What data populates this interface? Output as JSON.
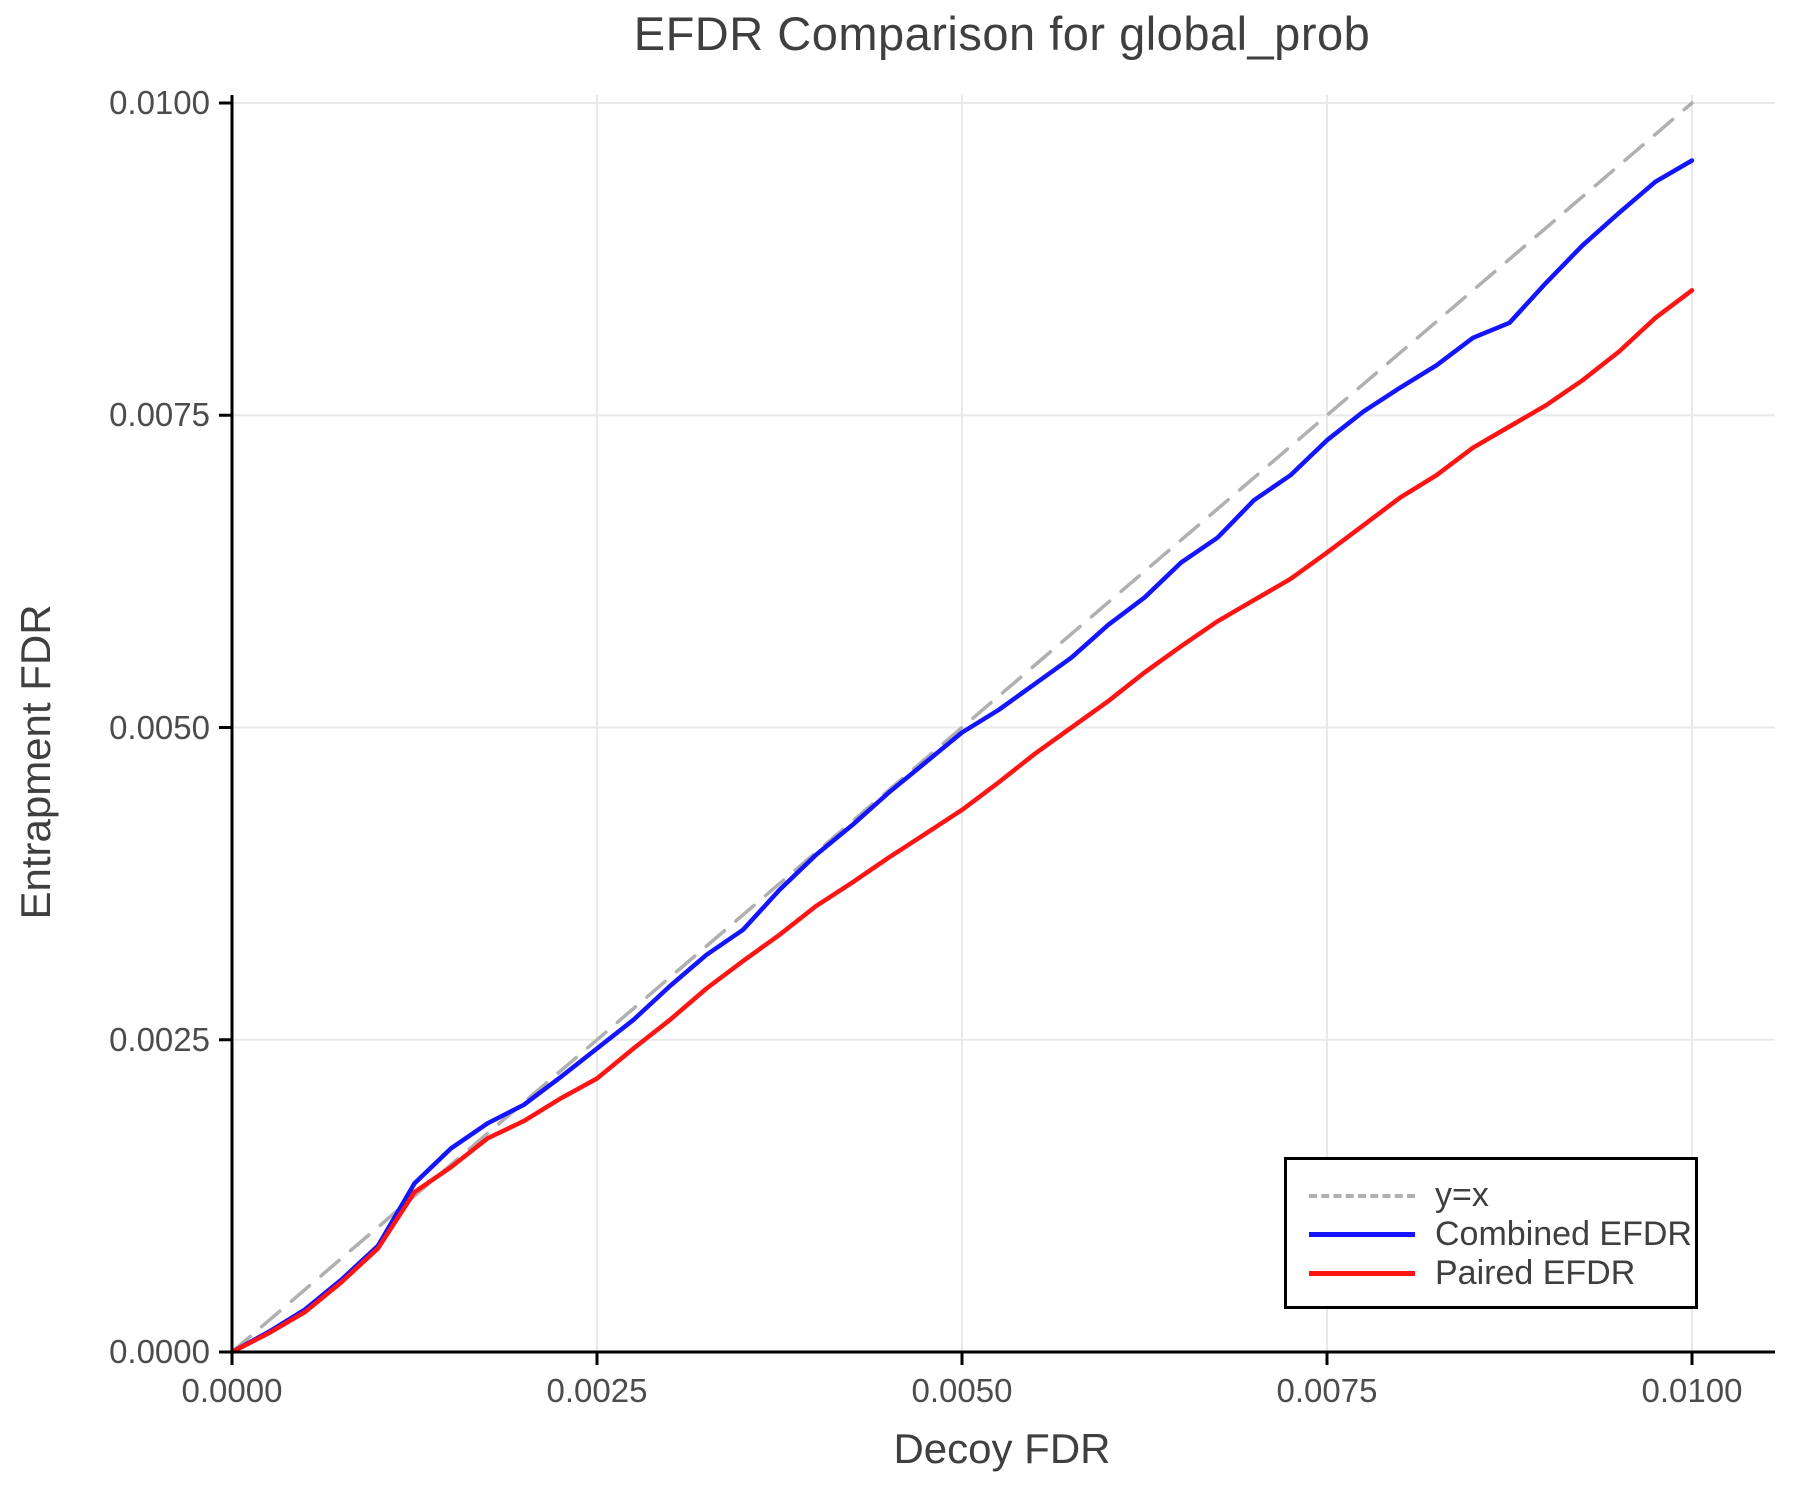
{
  "title": "EFDR Comparison for global_prob",
  "axes": {
    "xlabel": "Decoy FDR",
    "ylabel": "Entrapment FDR",
    "x_tick_labels": [
      "0.0000",
      "0.0025",
      "0.0050",
      "0.0075",
      "0.0100"
    ],
    "y_tick_labels": [
      "0.0000",
      "0.0025",
      "0.0050",
      "0.0075",
      "0.0100"
    ],
    "x_tick_values": [
      0,
      0.0025,
      0.005,
      0.0075,
      0.01
    ],
    "y_tick_values": [
      0,
      0.0025,
      0.005,
      0.0075,
      0.01
    ]
  },
  "legend": {
    "items": [
      {
        "label": "y=x",
        "color": "#b0b0b0",
        "dashed": true
      },
      {
        "label": "Combined EFDR",
        "color": "#1414ff",
        "dashed": false
      },
      {
        "label": "Paired EFDR",
        "color": "#ff1414",
        "dashed": false
      }
    ]
  },
  "colors": {
    "identity": "#b0b0b0",
    "combined": "#1414ff",
    "paired": "#ff1414",
    "grid": "#e9e9e9",
    "spine": "#000000",
    "text": "#3f3f3f",
    "tick_text": "#4c4c4c"
  },
  "chart_data": {
    "type": "line",
    "title": "EFDR Comparison for global_prob",
    "xlabel": "Decoy FDR",
    "ylabel": "Entrapment FDR",
    "xlim": [
      0,
      0.0106
    ],
    "ylim": [
      0,
      0.0101
    ],
    "grid": true,
    "legend_position": "lower right",
    "x": [
      0,
      0.00025,
      0.0005,
      0.00075,
      0.001,
      0.00125,
      0.0015,
      0.00175,
      0.002,
      0.00225,
      0.0025,
      0.00275,
      0.003,
      0.00325,
      0.0035,
      0.00375,
      0.004,
      0.00425,
      0.0045,
      0.00475,
      0.005,
      0.00525,
      0.0055,
      0.00575,
      0.006,
      0.00625,
      0.0065,
      0.00675,
      0.007,
      0.00725,
      0.0075,
      0.00775,
      0.008,
      0.00825,
      0.0085,
      0.00875,
      0.009,
      0.00925,
      0.0095,
      0.00975,
      0.01
    ],
    "series": [
      {
        "name": "y=x",
        "color": "#b0b0b0",
        "style": "dashed",
        "x": [
          0,
          0.01
        ],
        "y": [
          0,
          0.01
        ]
      },
      {
        "name": "Combined EFDR",
        "color": "#1414ff",
        "style": "solid",
        "y": [
          0,
          0.00016,
          0.00034,
          0.00058,
          0.00085,
          0.00135,
          0.00163,
          0.00183,
          0.00198,
          0.0022,
          0.00243,
          0.00266,
          0.00293,
          0.00318,
          0.00338,
          0.0037,
          0.00398,
          0.00422,
          0.00448,
          0.00472,
          0.00496,
          0.00514,
          0.00535,
          0.00556,
          0.00582,
          0.00604,
          0.00632,
          0.00652,
          0.00682,
          0.00702,
          0.0073,
          0.00753,
          0.00772,
          0.0079,
          0.00812,
          0.00824,
          0.00856,
          0.00886,
          0.00912,
          0.00937,
          0.00954
        ]
      },
      {
        "name": "Paired EFDR",
        "color": "#ff1414",
        "style": "solid",
        "y": [
          0,
          0.00015,
          0.00032,
          0.00056,
          0.00083,
          0.00128,
          0.00148,
          0.00171,
          0.00185,
          0.00203,
          0.00219,
          0.00243,
          0.00266,
          0.00291,
          0.00313,
          0.00334,
          0.00357,
          0.00376,
          0.00396,
          0.00415,
          0.00434,
          0.00456,
          0.00479,
          0.005,
          0.00521,
          0.00544,
          0.00565,
          0.00585,
          0.00602,
          0.00619,
          0.0064,
          0.00662,
          0.00684,
          0.00702,
          0.00724,
          0.00741,
          0.00758,
          0.00778,
          0.00801,
          0.00828,
          0.0085
        ]
      }
    ]
  }
}
